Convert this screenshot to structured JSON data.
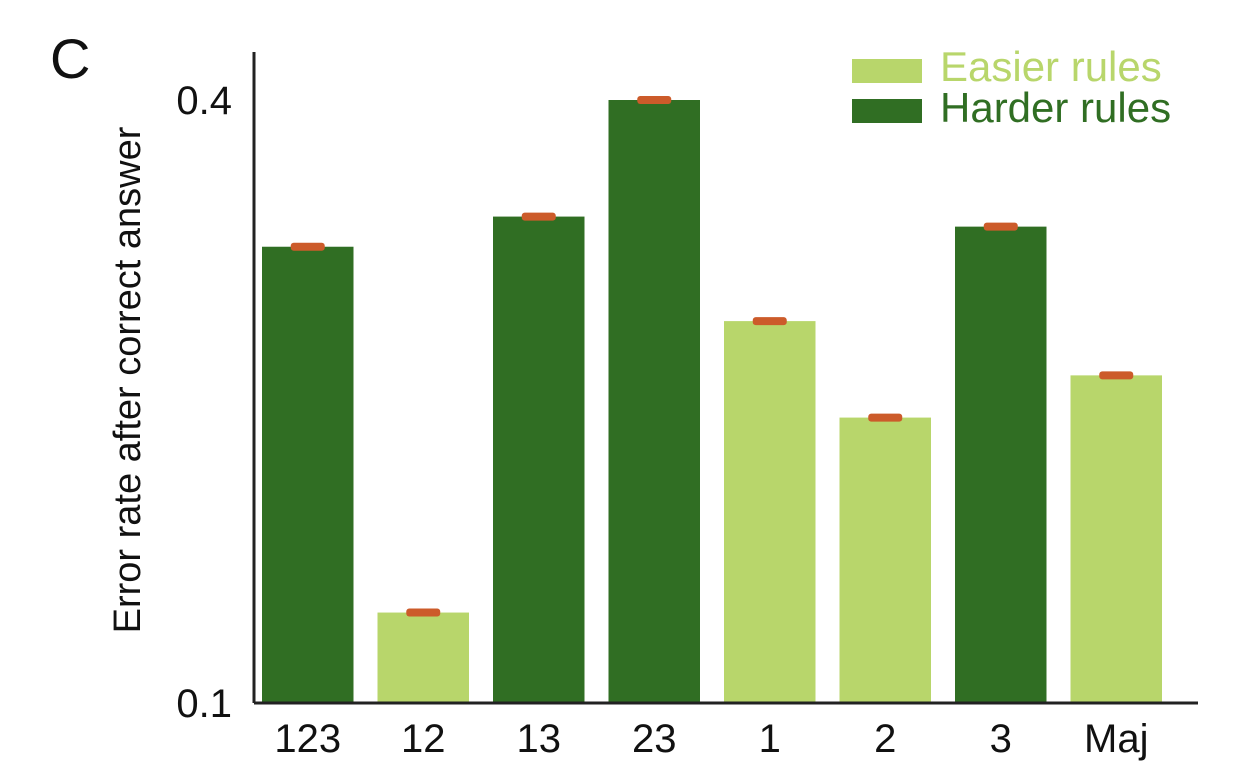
{
  "panel_label": "C",
  "colors": {
    "easier": "#b8d66b",
    "harder": "#306e23",
    "error_cap": "#cc5b2a",
    "axis": "#222222"
  },
  "chart_data": {
    "type": "bar",
    "title": "",
    "xlabel": "",
    "ylabel": "Error rate after correct answer",
    "ylim": [
      0.1,
      0.4
    ],
    "yticks": [
      {
        "value": 0.1,
        "label": "0.1"
      },
      {
        "value": 0.4,
        "label": "0.4"
      }
    ],
    "grid": false,
    "legend_position": "top-right",
    "legend": [
      {
        "name": "Easier rules",
        "group": "easier"
      },
      {
        "name": "Harder rules",
        "group": "harder"
      }
    ],
    "categories": [
      "123",
      "12",
      "13",
      "23",
      "1",
      "2",
      "3",
      "Maj"
    ],
    "groups": [
      "harder",
      "easier",
      "harder",
      "harder",
      "easier",
      "easier",
      "harder",
      "easier"
    ],
    "values": [
      0.327,
      0.145,
      0.342,
      0.4,
      0.29,
      0.242,
      0.337,
      0.263
    ],
    "error": [
      0.001,
      0.001,
      0.001,
      0.001,
      0.001,
      0.001,
      0.001,
      0.001
    ]
  }
}
